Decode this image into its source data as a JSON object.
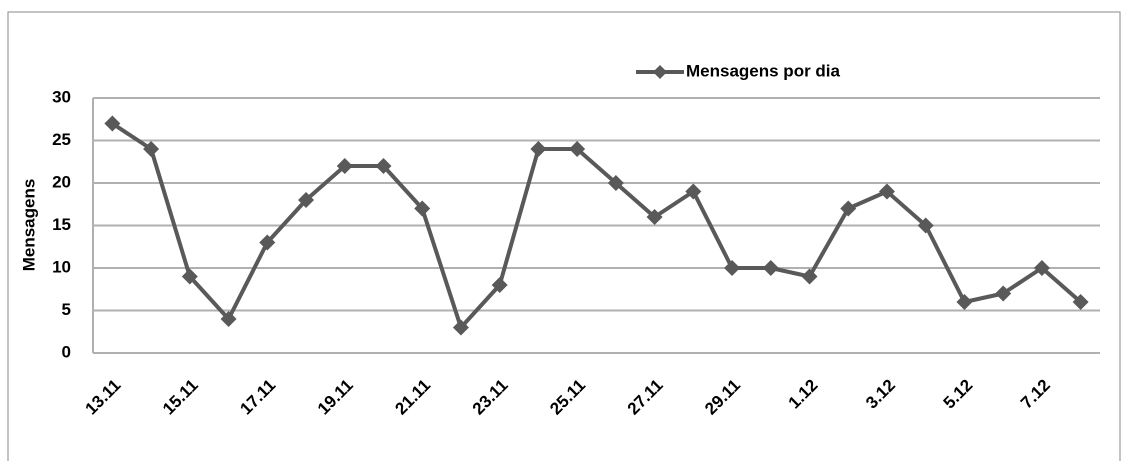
{
  "chart_data": {
    "type": "line",
    "y_label": "Mensagens",
    "categories": [
      "13.11",
      null,
      "15.11",
      null,
      "17.11",
      null,
      "19.11",
      null,
      "21.11",
      null,
      "23.11",
      null,
      "25.11",
      null,
      "27.11",
      null,
      "29.11",
      null,
      "1.12",
      null,
      "3.12",
      null,
      "5.12",
      null,
      "7.12",
      null
    ],
    "series": [
      {
        "name": "Mensagens por dia",
        "color": "#595959",
        "values": [
          27,
          24,
          9,
          4,
          13,
          18,
          22,
          22,
          17,
          3,
          8,
          24,
          24,
          20,
          16,
          19,
          10,
          10,
          9,
          17,
          19,
          15,
          6,
          7,
          10,
          6
        ]
      }
    ],
    "ylim": [
      0,
      30
    ],
    "yticks": [
      0,
      5,
      10,
      15,
      20,
      25,
      30
    ],
    "grid": true,
    "legend": "top"
  }
}
